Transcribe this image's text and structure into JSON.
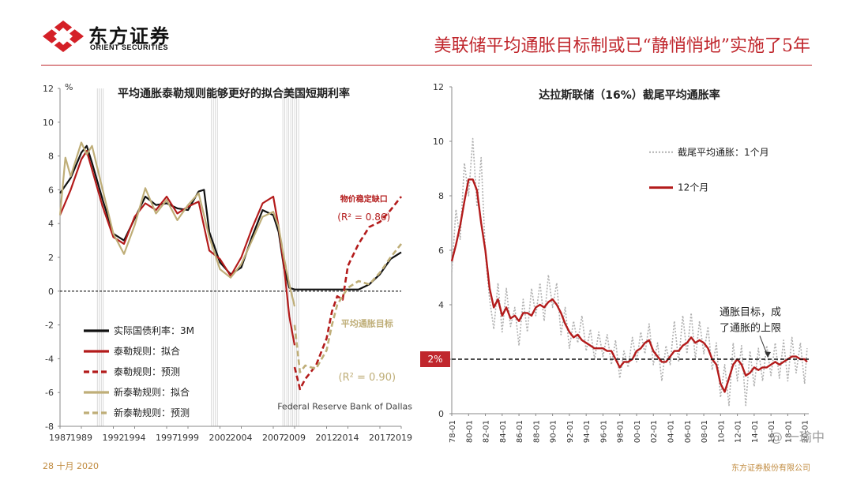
{
  "header": {
    "logo_cn": "东方证券",
    "logo_en": "ORIENT SECURITIES",
    "slide_title": "美联储平均通胀目标制或已“静悄悄地”实施了5年"
  },
  "footer": {
    "date": "28 十月 2020",
    "company": "东方证券股份有限公司",
    "watermark": "@ 一瑜中"
  },
  "colors": {
    "accent_red": "#c0272d",
    "series_black": "#111111",
    "series_red": "#b31b1b",
    "series_tan": "#bfae78",
    "series_gray": "#b0b0b0"
  },
  "chart_data": [
    {
      "type": "line",
      "title": "平均通胀泰勒规则能够更好的拟合美国短期利率",
      "ylabel_unit": "%",
      "xlim": [
        1987,
        2019
      ],
      "ylim": [
        -8,
        12
      ],
      "x_ticks": [
        1987,
        1989,
        1992,
        1994,
        1997,
        1999,
        2002,
        2004,
        2007,
        2009,
        2012,
        2014,
        2017,
        2019
      ],
      "y_ticks": [
        -8,
        -6,
        -4,
        -2,
        0,
        2,
        4,
        6,
        8,
        10,
        12
      ],
      "recession_bands": [
        [
          1990.5,
          1991.2
        ],
        [
          2001.2,
          2001.9
        ],
        [
          2007.9,
          2009.4
        ]
      ],
      "zero_line": 0,
      "series": [
        {
          "name": "实际国债利率：3M",
          "style": "solid",
          "color": "#111111",
          "x": [
            1987,
            1988,
            1989,
            1989.5,
            1990,
            1991,
            1992,
            1993,
            1994,
            1995,
            1996,
            1997,
            1998,
            1999,
            2000,
            2000.5,
            2001,
            2002,
            2003,
            2004,
            2005,
            2006,
            2007,
            2007.5,
            2008,
            2008.5,
            2009,
            2012,
            2015,
            2016,
            2017,
            2018,
            2019
          ],
          "y": [
            5.8,
            6.7,
            8.2,
            8.6,
            7.6,
            5.4,
            3.4,
            3.0,
            4.3,
            5.6,
            5.1,
            5.2,
            4.9,
            4.8,
            5.9,
            6.0,
            3.5,
            1.7,
            1.0,
            1.4,
            3.2,
            4.8,
            4.5,
            3.5,
            1.4,
            0.2,
            0.1,
            0.1,
            0.1,
            0.4,
            1.0,
            1.9,
            2.3
          ]
        },
        {
          "name": "泰勒规则：拟合",
          "style": "solid",
          "color": "#b31b1b",
          "x": [
            1987,
            1988,
            1989,
            1989.5,
            1990,
            1991,
            1992,
            1993,
            1994,
            1995,
            1996,
            1997,
            1998,
            1999,
            2000,
            2001,
            2002,
            2003,
            2004,
            2005,
            2006,
            2007,
            2007.5,
            2008,
            2008.5,
            2009
          ],
          "y": [
            4.5,
            6.0,
            7.8,
            8.3,
            7.2,
            5.0,
            3.2,
            2.8,
            4.4,
            5.2,
            4.8,
            5.6,
            4.6,
            5.0,
            5.3,
            2.4,
            1.9,
            0.9,
            2.0,
            3.7,
            5.2,
            5.6,
            3.8,
            1.5,
            -1.5,
            -3.2
          ]
        },
        {
          "name": "泰勒规则：预测",
          "style": "dashed",
          "color": "#b31b1b",
          "x": [
            2009,
            2009.5,
            2010,
            2011,
            2012,
            2012.5,
            2013,
            2013.5,
            2014,
            2015,
            2016,
            2017,
            2018,
            2019
          ],
          "y": [
            -4.5,
            -5.8,
            -5.2,
            -4.4,
            -2.8,
            -1.2,
            -0.3,
            -0.5,
            1.5,
            2.8,
            3.8,
            4.1,
            4.8,
            5.6
          ]
        },
        {
          "name": "新泰勒规则：拟合",
          "style": "solid",
          "color": "#bfae78",
          "x": [
            1987,
            1987.5,
            1988,
            1989,
            1989.5,
            1990,
            1991,
            1992,
            1993,
            1994,
            1995,
            1996,
            1997,
            1998,
            1999,
            2000,
            2001,
            2002,
            2003,
            2004,
            2005,
            2006,
            2007,
            2007.5,
            2008,
            2008.5,
            2009
          ],
          "y": [
            4.5,
            7.9,
            6.8,
            8.8,
            8.1,
            8.6,
            6.0,
            3.4,
            2.2,
            3.9,
            6.1,
            4.6,
            5.4,
            4.2,
            5.1,
            5.8,
            3.2,
            1.3,
            0.8,
            1.6,
            3.0,
            4.4,
            4.7,
            3.8,
            2.0,
            0.4,
            -0.9
          ]
        },
        {
          "name": "新泰勒规则：预测",
          "style": "dashed",
          "color": "#bfae78",
          "x": [
            2009,
            2009.5,
            2010,
            2011,
            2012,
            2012.5,
            2013,
            2014,
            2015,
            2016,
            2017,
            2018,
            2019
          ],
          "y": [
            -2.0,
            -4.8,
            -4.4,
            -4.6,
            -3.5,
            -2.0,
            -0.8,
            0.2,
            0.6,
            0.4,
            1.1,
            2.0,
            2.8
          ]
        }
      ],
      "annotations": {
        "gap_label": "物价稳定缺口",
        "r2_taylor": "(R² = 0.86)",
        "ait_label": "平均通胀目标",
        "r2_new": "(R² = 0.90)",
        "source": "Federal Reserve Bank of Dallas"
      },
      "legend": [
        "实际国债利率：3M",
        "泰勒规则：拟合",
        "泰勒规则：预测",
        "新泰勒规则：拟合",
        "新泰勒规则：预测"
      ],
      "legend_position": "bottom-left"
    },
    {
      "type": "line",
      "title": "达拉斯联储（16%）截尾平均通胀率",
      "xlim": [
        1978,
        2020.5
      ],
      "ylim": [
        0,
        12
      ],
      "x_ticks": [
        "78-01",
        "80-01",
        "82-01",
        "84-01",
        "86-01",
        "88-01",
        "90-01",
        "92-01",
        "94-01",
        "96-01",
        "98-01",
        "00-01",
        "02-01",
        "04-01",
        "06-01",
        "08-01",
        "10-01",
        "12-01",
        "14-01",
        "16-01",
        "18-01",
        "20-01"
      ],
      "y_ticks": [
        0,
        2,
        4,
        6,
        8,
        10,
        12
      ],
      "target_line": 2,
      "target_label": "2%",
      "series": [
        {
          "name": "截尾平均通胀：1个月",
          "style": "dotted",
          "color": "#b0b0b0",
          "x": [
            1978,
            1978.5,
            1979,
            1979.5,
            1980,
            1980.5,
            1981,
            1981.5,
            1982,
            1982.5,
            1983,
            1983.5,
            1984,
            1984.5,
            1985,
            1985.5,
            1986,
            1986.5,
            1987,
            1987.5,
            1988,
            1988.5,
            1989,
            1989.5,
            1990,
            1990.5,
            1991,
            1991.5,
            1992,
            1992.5,
            1993,
            1993.5,
            1994,
            1994.5,
            1995,
            1995.5,
            1996,
            1996.5,
            1997,
            1997.5,
            1998,
            1998.5,
            1999,
            1999.5,
            2000,
            2000.5,
            2001,
            2001.5,
            2002,
            2002.5,
            2003,
            2003.5,
            2004,
            2004.5,
            2005,
            2005.5,
            2006,
            2006.5,
            2007,
            2007.5,
            2008,
            2008.5,
            2009,
            2009.5,
            2010,
            2010.5,
            2011,
            2011.5,
            2012,
            2012.5,
            2013,
            2013.5,
            2014,
            2014.5,
            2015,
            2015.5,
            2016,
            2016.5,
            2017,
            2017.5,
            2018,
            2018.5,
            2019,
            2019.5,
            2020,
            2020.3
          ],
          "y": [
            5.2,
            7.5,
            6.4,
            9.2,
            8.0,
            10.1,
            7.6,
            9.4,
            5.9,
            4.2,
            3.1,
            4.8,
            3.0,
            4.6,
            3.2,
            3.9,
            2.5,
            4.2,
            3.0,
            4.6,
            3.6,
            4.8,
            3.4,
            5.1,
            3.9,
            4.8,
            2.9,
            3.9,
            2.4,
            3.4,
            2.6,
            3.6,
            2.3,
            3.1,
            2.0,
            3.0,
            2.1,
            2.9,
            1.8,
            2.7,
            1.3,
            2.3,
            1.7,
            2.8,
            1.9,
            3.0,
            2.2,
            3.3,
            1.8,
            2.6,
            1.2,
            2.5,
            1.8,
            3.4,
            1.9,
            3.6,
            2.2,
            3.7,
            2.0,
            3.4,
            2.2,
            3.2,
            1.6,
            2.6,
            0.6,
            1.8,
            0.3,
            2.6,
            1.2,
            2.5,
            0.3,
            2.3,
            1.0,
            2.4,
            1.2,
            2.5,
            1.4,
            2.6,
            1.3,
            2.7,
            1.2,
            2.8,
            1.5,
            2.6,
            1.1,
            2.4
          ]
        },
        {
          "name": "12个月",
          "style": "solid",
          "color": "#b31b1b",
          "x": [
            1978,
            1978.5,
            1979,
            1979.5,
            1980,
            1980.5,
            1981,
            1981.5,
            1982,
            1982.5,
            1983,
            1983.5,
            1984,
            1984.5,
            1985,
            1985.5,
            1986,
            1986.5,
            1987,
            1987.5,
            1988,
            1988.5,
            1989,
            1989.5,
            1990,
            1990.5,
            1991,
            1991.5,
            1992,
            1992.5,
            1993,
            1993.5,
            1994,
            1994.5,
            1995,
            1995.5,
            1996,
            1996.5,
            1997,
            1997.5,
            1998,
            1998.5,
            1999,
            1999.5,
            2000,
            2000.5,
            2001,
            2001.5,
            2002,
            2002.5,
            2003,
            2003.5,
            2004,
            2004.5,
            2005,
            2005.5,
            2006,
            2006.5,
            2007,
            2007.5,
            2008,
            2008.5,
            2009,
            2009.5,
            2010,
            2010.5,
            2011,
            2011.5,
            2012,
            2012.5,
            2013,
            2013.5,
            2014,
            2014.5,
            2015,
            2015.5,
            2016,
            2016.5,
            2017,
            2017.5,
            2018,
            2018.5,
            2019,
            2019.5,
            2020,
            2020.3
          ],
          "y": [
            5.6,
            6.2,
            6.9,
            7.8,
            8.6,
            8.6,
            8.2,
            7.0,
            6.0,
            4.6,
            3.9,
            4.2,
            3.6,
            3.9,
            3.5,
            3.6,
            3.4,
            3.7,
            3.7,
            3.6,
            3.9,
            4.0,
            3.9,
            4.1,
            4.2,
            4.0,
            3.7,
            3.3,
            3.0,
            2.8,
            2.9,
            2.7,
            2.6,
            2.5,
            2.4,
            2.4,
            2.4,
            2.3,
            2.3,
            2.0,
            1.7,
            1.9,
            1.9,
            2.0,
            2.3,
            2.4,
            2.6,
            2.7,
            2.3,
            2.1,
            1.9,
            1.9,
            2.1,
            2.3,
            2.3,
            2.5,
            2.6,
            2.8,
            2.6,
            2.7,
            2.6,
            2.4,
            2.0,
            1.8,
            1.1,
            0.8,
            1.3,
            1.8,
            2.0,
            1.8,
            1.4,
            1.5,
            1.7,
            1.6,
            1.7,
            1.7,
            1.8,
            1.9,
            1.8,
            1.9,
            2.0,
            2.1,
            2.1,
            2.0,
            2.0,
            1.9
          ]
        }
      ],
      "annotations": {
        "target_note_1": "通胀目标，成",
        "target_note_2": "了通胀的上限"
      },
      "legend": [
        "截尾平均通胀：1个月",
        "12个月"
      ],
      "legend_position": "top-right"
    }
  ]
}
